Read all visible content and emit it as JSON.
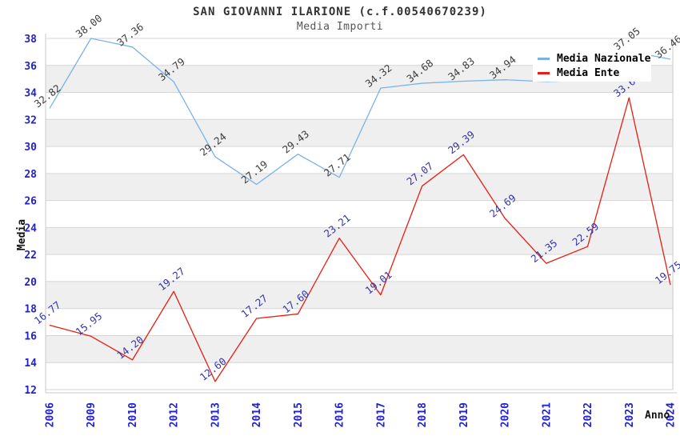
{
  "chart_data": {
    "type": "line",
    "title": "SAN GIOVANNI ILARIONE (c.f.00540670239)",
    "subtitle": "Media Importi",
    "xlabel": "Anno",
    "ylabel": "Media",
    "ylim": [
      12,
      38
    ],
    "yticks": [
      12,
      14,
      16,
      18,
      20,
      22,
      24,
      26,
      28,
      30,
      32,
      34,
      36,
      38
    ],
    "grid": true,
    "categories": [
      "2006",
      "2009",
      "2010",
      "2012",
      "2013",
      "2014",
      "2015",
      "2016",
      "2017",
      "2018",
      "2019",
      "2020",
      "2021",
      "2022",
      "2023",
      "2024"
    ],
    "series": [
      {
        "name": "Media Nazionale",
        "color": "#7ab2e8",
        "label_color": "#3d3d3d",
        "values": [
          32.82,
          38.0,
          37.36,
          34.79,
          29.24,
          27.19,
          29.43,
          27.71,
          34.32,
          34.68,
          34.83,
          34.94,
          34.8,
          34.9,
          37.05,
          36.46
        ],
        "labels": [
          "32.82",
          "38.00",
          "37.36",
          "34.79",
          "29.24",
          "27.19",
          "29.43",
          "27.71",
          "34.32",
          "34.68",
          "34.83",
          "34.94",
          "",
          "",
          "37.05",
          "36.46"
        ]
      },
      {
        "name": "Media Ente",
        "color": "#e81d12",
        "label_color": "#3434ae",
        "values": [
          16.77,
          15.95,
          14.2,
          19.27,
          12.6,
          17.27,
          17.6,
          23.21,
          19.01,
          27.07,
          29.39,
          24.69,
          21.35,
          22.59,
          33.6,
          19.75
        ],
        "labels": [
          "16.77",
          "15.95",
          "14.20",
          "19.27",
          "12.60",
          "17.27",
          "17.60",
          "23.21",
          "19.01",
          "27.07",
          "29.39",
          "24.69",
          "21.35",
          "22.59",
          "33.60",
          "19.75"
        ]
      }
    ],
    "legend": {
      "position": "top-right",
      "entries": [
        "Media Nazionale",
        "Media Ente"
      ]
    },
    "style": {
      "band_colors": [
        "#ffffff",
        "#efefef"
      ],
      "grid_color": "#d6d6d6",
      "tick_label_color": "#2222cc",
      "plot_border_color": "#c9c9c9",
      "background": "#ffffff"
    }
  }
}
